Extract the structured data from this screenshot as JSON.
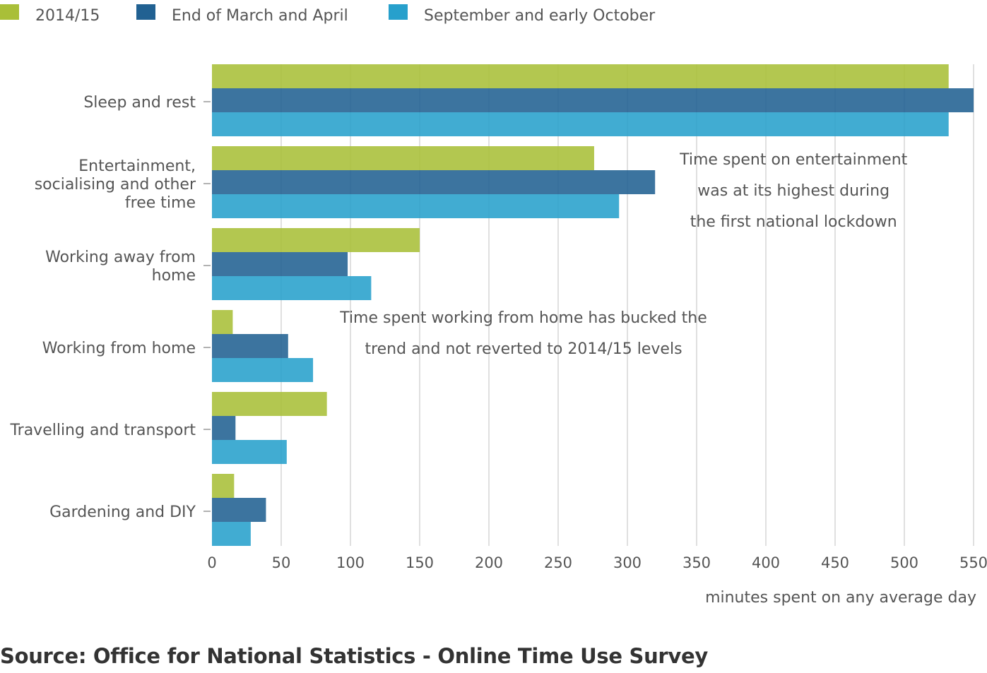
{
  "chart_data": {
    "type": "bar",
    "orientation": "horizontal",
    "categories": [
      "Sleep and rest",
      "Entertainment, socialising and other free time",
      "Working away from home",
      "Working from home",
      "Travelling and transport",
      "Gardening and DIY"
    ],
    "category_label_lines": [
      [
        "Sleep and rest"
      ],
      [
        "Entertainment,",
        "socialising and other",
        "free time"
      ],
      [
        "Working away from",
        "home"
      ],
      [
        "Working from home"
      ],
      [
        "Travelling and transport"
      ],
      [
        "Gardening and DIY"
      ]
    ],
    "series": [
      {
        "name": "2014/15",
        "color": "#a9bf38",
        "values": [
          532,
          276,
          150,
          15,
          83,
          16
        ]
      },
      {
        "name": "End of March and April",
        "color": "#216192",
        "values": [
          550,
          320,
          98,
          55,
          17,
          39
        ]
      },
      {
        "name": "September and early October",
        "color": "#27a0cc",
        "values": [
          532,
          294,
          115,
          73,
          54,
          28
        ]
      }
    ],
    "xlim": [
      0,
      550
    ],
    "xticks": [
      0,
      50,
      100,
      150,
      200,
      250,
      300,
      350,
      400,
      450,
      500,
      550
    ],
    "xlabel": "minutes spent on any average day",
    "ylabel": "",
    "grid": true,
    "legend": "top-left",
    "annotations": [
      {
        "lines": [
          "Time spent on entertainment",
          "was at its highest during",
          "the first national lockdown"
        ],
        "x": 420,
        "category": "Entertainment, socialising and other free time"
      },
      {
        "lines": [
          "Time spent working from home has bucked the",
          "trend and not reverted to 2014/15 levels"
        ],
        "x": 225,
        "category": "Working from home"
      }
    ]
  },
  "source": "Source: Office for National Statistics - Online Time Use Survey"
}
